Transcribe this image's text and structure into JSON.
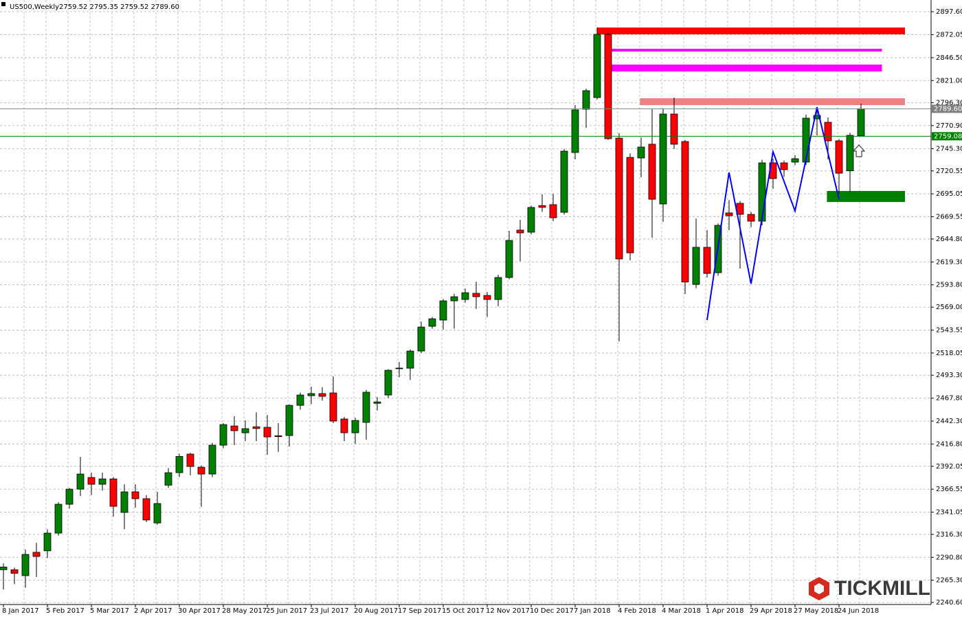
{
  "chart_data": {
    "type": "candlestick",
    "title": "US500,Weekly",
    "info": "2759.52 2795.35 2759.52 2789.60",
    "brand": "TICKMILL",
    "up_color": "#008000",
    "down_color": "#ff0000",
    "grid": true,
    "ylim": [
      2238.3,
      2910.6
    ],
    "yticks": [
      {
        "value": 2897.6,
        "label": "2897.60"
      },
      {
        "value": 2872.05,
        "label": "2872.05"
      },
      {
        "value": 2846.5,
        "label": "2846.50"
      },
      {
        "value": 2821.0,
        "label": "2821.00"
      },
      {
        "value": 2796.3,
        "label": "2796.30"
      },
      {
        "value": 2770.9,
        "label": "2770.90"
      },
      {
        "value": 2745.3,
        "label": "2745.30"
      },
      {
        "value": 2720.55,
        "label": "2720.55"
      },
      {
        "value": 2695.05,
        "label": "2695.05"
      },
      {
        "value": 2669.55,
        "label": "2669.55"
      },
      {
        "value": 2644.8,
        "label": "2644.80"
      },
      {
        "value": 2619.3,
        "label": "2619.30"
      },
      {
        "value": 2593.8,
        "label": "2593.80"
      },
      {
        "value": 2569.0,
        "label": "2569.00"
      },
      {
        "value": 2543.55,
        "label": "2543.55"
      },
      {
        "value": 2518.05,
        "label": "2518.05"
      },
      {
        "value": 2493.3,
        "label": "2493.30"
      },
      {
        "value": 2467.8,
        "label": "2467.80"
      },
      {
        "value": 2442.3,
        "label": "2442.30"
      },
      {
        "value": 2416.8,
        "label": "2416.80"
      },
      {
        "value": 2392.05,
        "label": "2392.05"
      },
      {
        "value": 2366.55,
        "label": "2366.55"
      },
      {
        "value": 2341.05,
        "label": "2341.05"
      },
      {
        "value": 2316.3,
        "label": "2316.30"
      },
      {
        "value": 2290.8,
        "label": "2290.80"
      },
      {
        "value": 2265.3,
        "label": "2265.30"
      },
      {
        "value": 2240.6,
        "label": "2240.60"
      }
    ],
    "categories": [
      "8 Jan 2017",
      null,
      null,
      null,
      "5 Feb 2017",
      null,
      null,
      null,
      "5 Mar 2017",
      null,
      null,
      null,
      "2 Apr 2017",
      null,
      null,
      null,
      "30 Apr 2017",
      null,
      null,
      null,
      "28 May 2017",
      null,
      null,
      null,
      "25 Jun 2017",
      null,
      null,
      null,
      "23 Jul 2017",
      null,
      null,
      null,
      "20 Aug 2017",
      null,
      null,
      null,
      "17 Sep 2017",
      null,
      null,
      null,
      "15 Oct 2017",
      null,
      null,
      null,
      "12 Nov 2017",
      null,
      null,
      null,
      "10 Dec 2017",
      null,
      null,
      null,
      "7 Jan 2018",
      null,
      null,
      null,
      "4 Feb 2018",
      null,
      null,
      null,
      "4 Mar 2018",
      null,
      null,
      null,
      "1 Apr 2018",
      null,
      null,
      null,
      "29 Apr 2018",
      null,
      null,
      null,
      "27 May 2018",
      null,
      null,
      null,
      "24 Jun 2018",
      null,
      null
    ],
    "open": [
      2277,
      2277,
      2270.4,
      2296.4,
      2298,
      2317.7,
      2349.8,
      2366.6,
      2379.6,
      2372,
      2378,
      2340.7,
      2363.6,
      2356,
      2329,
      2371,
      2384.9,
      2405.6,
      2391,
      2383.4,
      2415.5,
      2436.9,
      2429.3,
      2436,
      2435.4,
      2426,
      2426.2,
      2459.8,
      2470.5,
      2472.9,
      2473.6,
      2444.6,
      2429.3,
      2440.8,
      2462,
      2471.3,
      2500.5,
      2501.1,
      2520.2,
      2547.7,
      2554.6,
      2576,
      2577.5,
      2584.4,
      2582,
      2577.5,
      2602,
      2654.7,
      2652.4,
      2682,
      2683,
      2674.5,
      2741,
      2789.1,
      2802.1,
      2872.4,
      2757,
      2735.6,
      2734.9,
      2750.2,
      2683.7,
      2783.8,
      2753.2,
      2594.3,
      2635.6,
      2607.3,
      2673.8,
      2684.5,
      2672.2,
      2664.6,
      2729.5,
      2729.5,
      2730.3,
      2730.3,
      2778.4,
      2774.6,
      2754,
      2720.6,
      2759.52
    ],
    "high": [
      2284,
      2279.5,
      2299.4,
      2307,
      2322,
      2352,
      2368,
      2402.5,
      2385,
      2385,
      2380,
      2372,
      2372,
      2360,
      2363.6,
      2390,
      2406,
      2407,
      2393,
      2418,
      2440,
      2447.6,
      2443,
      2452,
      2449,
      2440,
      2461,
      2474,
      2480.5,
      2480,
      2491.9,
      2447,
      2446,
      2477,
      2469,
      2500,
      2508,
      2522,
      2553,
      2558,
      2578,
      2584,
      2589.7,
      2597.4,
      2586,
      2605,
      2653.9,
      2666,
      2682,
      2694.4,
      2695,
      2745,
      2793.7,
      2812,
      2880,
      2874,
      2762.4,
      2740,
      2757.8,
      2789.9,
      2790,
      2802.1,
      2755,
      2667.6,
      2654.7,
      2662,
      2688,
      2687,
      2675,
      2733,
      2734,
      2732,
      2738,
      2783,
      2788.4,
      2780,
      2756,
      2763,
      2795.35
    ],
    "low": [
      2255,
      2261,
      2257,
      2269,
      2290,
      2315,
      2345,
      2359,
      2360,
      2365,
      2336,
      2322,
      2346,
      2330,
      2327,
      2368,
      2380,
      2382,
      2347,
      2380,
      2412,
      2415.5,
      2420,
      2420,
      2404.8,
      2408,
      2414,
      2455,
      2461,
      2465,
      2440,
      2420,
      2417,
      2421.6,
      2454,
      2468,
      2491,
      2488,
      2518,
      2545,
      2544,
      2545,
      2574,
      2567,
      2558,
      2570,
      2600,
      2620,
      2650,
      2675,
      2664.6,
      2672,
      2733.4,
      2768.5,
      2800,
      2755,
      2530.9,
      2621,
      2713.5,
      2646.3,
      2663.8,
      2745,
      2583.6,
      2590,
      2602,
      2604,
      2654.7,
      2611.9,
      2658,
      2660,
      2700.5,
      2714,
      2727,
      2727,
      2760,
      2733.4,
      2695.1,
      2696.7,
      2759.52
    ],
    "close": [
      2280,
      2273,
      2294,
      2291.8,
      2317.7,
      2349.8,
      2366.6,
      2383.4,
      2372,
      2378,
      2347.5,
      2363.6,
      2356,
      2332.3,
      2350.6,
      2384.9,
      2403,
      2391.8,
      2383.4,
      2415.5,
      2438.4,
      2431.6,
      2433.9,
      2434,
      2424.7,
      2425,
      2459.8,
      2471.3,
      2472.9,
      2469.8,
      2442.3,
      2429.3,
      2443,
      2474.4,
      2463.6,
      2498.8,
      2501.2,
      2520.2,
      2546.9,
      2556.1,
      2576,
      2580.6,
      2585.1,
      2580.6,
      2577.5,
      2602,
      2643.2,
      2651.6,
      2679.9,
      2680,
      2668.4,
      2742.5,
      2788.4,
      2809.8,
      2872.4,
      2756.3,
      2622.6,
      2629.4,
      2747.1,
      2689,
      2783.8,
      2750.2,
      2597,
      2635.6,
      2606.5,
      2660,
      2670.7,
      2672.2,
      2664.6,
      2729.5,
      2712,
      2721.9,
      2734.1,
      2779.2,
      2782.2,
      2754,
      2718,
      2760.1,
      2789.6
    ],
    "price_lines": [
      {
        "value": 2789.6,
        "label": "2789.60",
        "color": "#808080"
      },
      {
        "value": 2759.08,
        "label": "2759.08",
        "color": "#008000"
      }
    ],
    "zones": [
      {
        "start": 54,
        "end": 82,
        "low": 2872.4,
        "high": 2880,
        "color": "#ff0000"
      },
      {
        "start": 55.2,
        "end": 79.9,
        "low": 2853.3,
        "high": 2856.4,
        "color": "#ff00ff"
      },
      {
        "start": 55.2,
        "end": 79.9,
        "low": 2831.1,
        "high": 2838.8,
        "color": "#ff00ff"
      },
      {
        "start": 57.9,
        "end": 82,
        "low": 2793.7,
        "high": 2801.3,
        "color": "#f08080"
      },
      {
        "start": 74.9,
        "end": 82,
        "low": 2686,
        "high": 2698.2,
        "color": "#008000"
      }
    ],
    "zigzag": {
      "color": "#0000ff",
      "x": [
        64,
        66,
        68,
        70,
        72,
        74,
        76
      ],
      "values": [
        2554.6,
        2718.8,
        2595,
        2741.8,
        2676,
        2791.4,
        2689
      ]
    }
  }
}
